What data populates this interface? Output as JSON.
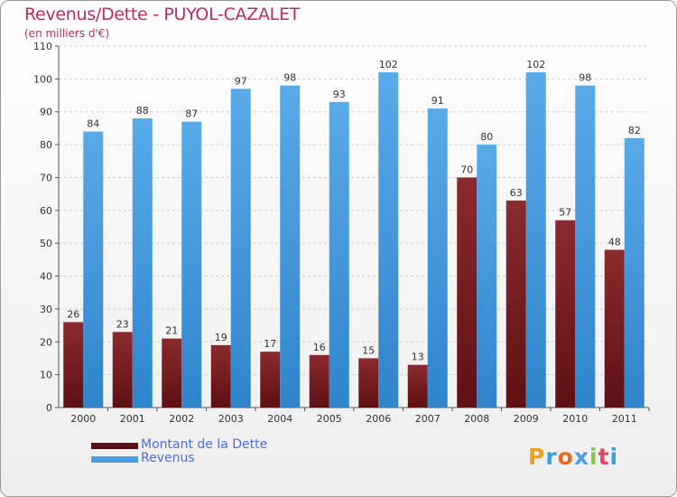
{
  "title": "Revenus/Dette - PUYOL-CAZALET",
  "subtitle": "(en milliers d'€)",
  "logo": "Proxiti",
  "colors": {
    "dette": "#7a1e22",
    "revenus": "#4aa0e2",
    "title": "#b5315a",
    "legend_text": "#4f6fe0"
  },
  "legend": [
    {
      "label": "Montant de la Dette",
      "color": "#5a0f12"
    },
    {
      "label": "Revenus",
      "color": "#4aa0e2"
    }
  ],
  "chart_data": {
    "type": "bar",
    "title": "Revenus/Dette - PUYOL-CAZALET",
    "subtitle": "(en milliers d'€)",
    "categories": [
      "2000",
      "2001",
      "2002",
      "2003",
      "2004",
      "2005",
      "2006",
      "2007",
      "2008",
      "2009",
      "2010",
      "2011"
    ],
    "series": [
      {
        "name": "Montant de la Dette",
        "values": [
          26,
          23,
          21,
          19,
          17,
          16,
          15,
          13,
          70,
          63,
          57,
          48
        ]
      },
      {
        "name": "Revenus",
        "values": [
          84,
          88,
          87,
          97,
          98,
          93,
          102,
          91,
          80,
          102,
          98,
          82
        ]
      }
    ],
    "ylim": [
      0,
      110
    ],
    "yticks": [
      0,
      10,
      20,
      30,
      40,
      50,
      60,
      70,
      80,
      90,
      100,
      110
    ],
    "grid": true,
    "legend_position": "bottom-left"
  }
}
